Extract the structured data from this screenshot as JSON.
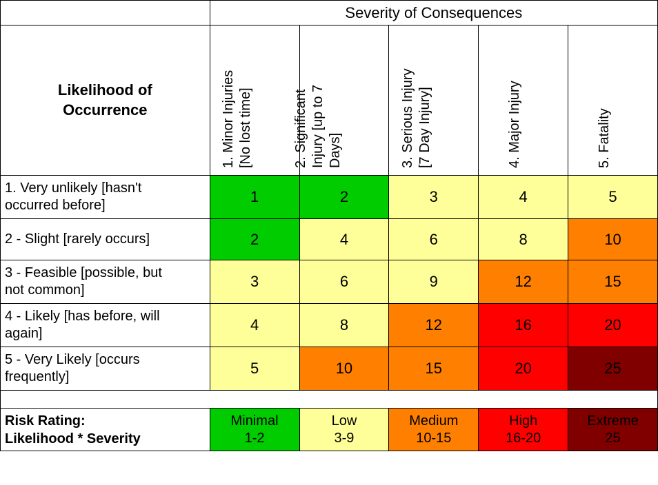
{
  "colors": {
    "green": "#00cc00",
    "yellow": "#ffff99",
    "orange": "#ff8000",
    "red": "#ff0000",
    "darkred": "#800000",
    "white": "#ffffff",
    "black": "#000000"
  },
  "header": {
    "severity_title": "Severity of Consequences",
    "likelihood_title_l1": "Likelihood of",
    "likelihood_title_l2": "Occurrence"
  },
  "severity_columns": [
    {
      "line1": "1.  Minor Injuries",
      "line2": "[No lost time]"
    },
    {
      "line1": "2. Significant",
      "line2": "Injury   [up to 7",
      "line3": "Days]"
    },
    {
      "line1": "3.  Serious Injury",
      "line2": "[7 Day Injury]"
    },
    {
      "line1": "4.  Major Injury",
      "line2": ""
    },
    {
      "line1": "5.  Fatality",
      "line2": ""
    }
  ],
  "likelihood_rows": [
    {
      "l1": "1. Very unlikely [hasn't",
      "l2": "occurred before]"
    },
    {
      "l1": "2 - Slight [rarely occurs]",
      "l2": ""
    },
    {
      "l1": "3 - Feasible [possible, but",
      "l2": "not   common]"
    },
    {
      "l1": "4 - Likely [has before, will",
      "l2": "again]"
    },
    {
      "l1": "5 - Very Likely [occurs",
      "l2": "frequently]"
    }
  ],
  "matrix": {
    "values": [
      [
        1,
        2,
        3,
        4,
        5
      ],
      [
        2,
        4,
        6,
        8,
        10
      ],
      [
        3,
        6,
        9,
        12,
        15
      ],
      [
        4,
        8,
        12,
        16,
        20
      ],
      [
        5,
        10,
        15,
        20,
        25
      ]
    ],
    "cell_colors": [
      [
        "green",
        "green",
        "yellow",
        "yellow",
        "yellow"
      ],
      [
        "green",
        "yellow",
        "yellow",
        "yellow",
        "orange"
      ],
      [
        "yellow",
        "yellow",
        "yellow",
        "orange",
        "orange"
      ],
      [
        "yellow",
        "yellow",
        "orange",
        "red",
        "red"
      ],
      [
        "yellow",
        "orange",
        "orange",
        "red",
        "darkred"
      ]
    ]
  },
  "rating": {
    "label_l1": "Risk Rating:",
    "label_l2": "Likelihood * Severity",
    "levels": [
      {
        "name": "Minimal",
        "range": "1-2",
        "color": "green"
      },
      {
        "name": "Low",
        "range": "3-9",
        "color": "yellow"
      },
      {
        "name": "Medium",
        "range": "10-15",
        "color": "orange"
      },
      {
        "name": "High",
        "range": "16-20",
        "color": "red"
      },
      {
        "name": "Extreme",
        "range": "25",
        "color": "darkred"
      }
    ]
  }
}
